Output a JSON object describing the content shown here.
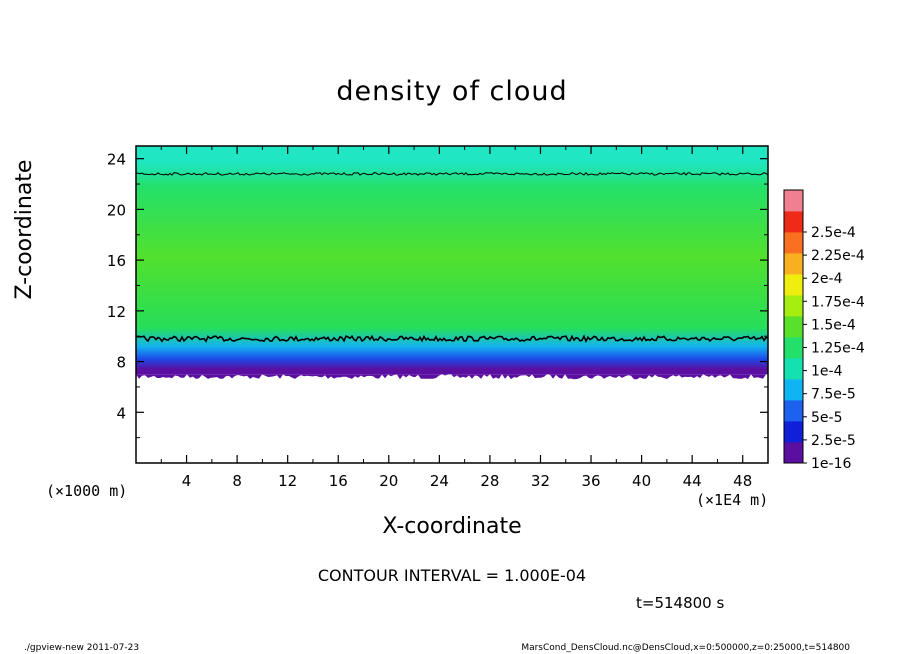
{
  "chart_data": {
    "type": "heatmap",
    "title": "density of cloud",
    "xlabel": "X-coordinate",
    "ylabel": "Z-coordinate",
    "x_unit_label": "(×1000 m)",
    "x_scale_label": "(×1E4 m)",
    "xlim": [
      0,
      50
    ],
    "ylim": [
      0,
      25
    ],
    "x_ticks": [
      4,
      8,
      12,
      16,
      20,
      24,
      28,
      32,
      36,
      40,
      44,
      48
    ],
    "y_ticks": [
      4,
      8,
      12,
      16,
      20,
      24
    ],
    "colorbar": {
      "labels": [
        "1e-16",
        "2.5e-5",
        "5e-5",
        "7.5e-5",
        "1e-4",
        "1.25e-4",
        "1.5e-4",
        "1.75e-4",
        "2e-4",
        "2.25e-4",
        "2.5e-4"
      ],
      "colors": [
        "#5b0fa0",
        "#1020d8",
        "#1c62ee",
        "#10b4f2",
        "#14e0b0",
        "#22e06a",
        "#58e02a",
        "#a6ee10",
        "#f0ee10",
        "#f8b020",
        "#f87020",
        "#f02a18",
        "#f08090"
      ]
    },
    "bands": [
      {
        "z_bottom": 7.0,
        "z_top": 7.8,
        "value": "1e-16 to 2.5e-5",
        "color": "#5b0fa0"
      },
      {
        "z_bottom": 7.8,
        "z_top": 8.6,
        "value": "2.5e-5 to 5e-5",
        "color": "#1c4ae8"
      },
      {
        "z_bottom": 8.6,
        "z_top": 9.8,
        "value": "5e-5 to 1e-4",
        "color": "#14b4f0"
      },
      {
        "z_bottom": 9.8,
        "z_top": 11.5,
        "value": "1e-4 to 1.25e-4",
        "color": "#26de5a"
      },
      {
        "z_bottom": 11.5,
        "z_top": 21.0,
        "value": "1.25e-4 to 1.5e-4",
        "color": "#52e02c"
      },
      {
        "z_bottom": 21.0,
        "z_top": 22.5,
        "value": "1e-4 to 1.25e-4",
        "color": "#24e06a"
      },
      {
        "z_bottom": 22.5,
        "z_top": 25.0,
        "value": "7.5e-5 to 1e-4",
        "color": "#20e6c4"
      }
    ],
    "contour_levels_z_approx": [
      9.8,
      22.8
    ]
  },
  "contour_interval": "CONTOUR INTERVAL = 1.000E-04",
  "time_label": "t=514800 s",
  "footer_left": "./gpview-new  2011-07-23",
  "footer_right": "MarsCond_DensCloud.nc@DensCloud,x=0:500000,z=0:25000,t=514800"
}
